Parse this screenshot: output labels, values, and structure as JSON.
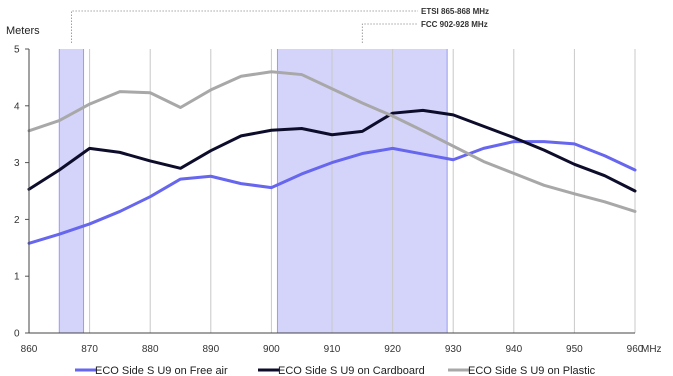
{
  "chart_data": {
    "type": "line",
    "ylabel": "Meters",
    "xunit": "MHz",
    "xlim": [
      860,
      960
    ],
    "ylim": [
      0,
      5
    ],
    "grid": "vertical",
    "legend_position": "bottom",
    "x_ticks": [
      860,
      870,
      880,
      890,
      900,
      910,
      920,
      930,
      940,
      950,
      960
    ],
    "y_ticks": [
      0,
      1,
      2,
      3,
      4,
      5
    ],
    "bands": [
      {
        "label": "ETSI 865-868 MHz",
        "x": [
          865,
          869
        ]
      },
      {
        "label": "FCC 902-928 MHz",
        "x": [
          901,
          929
        ]
      }
    ],
    "x": [
      860,
      865,
      870,
      875,
      880,
      885,
      890,
      895,
      900,
      905,
      910,
      915,
      920,
      925,
      930,
      935,
      940,
      945,
      950,
      955,
      960
    ],
    "series": [
      {
        "name": "ECO Side S U9 on Free air",
        "color": "#6666ee",
        "values": [
          1.58,
          1.74,
          1.92,
          2.14,
          2.4,
          2.71,
          2.76,
          2.63,
          2.56,
          2.8,
          3.0,
          3.16,
          3.25,
          3.15,
          3.05,
          3.25,
          3.37,
          3.37,
          3.33,
          3.12,
          2.87
        ]
      },
      {
        "name": "ECO Side S U9 on Cardboard",
        "color": "#0d0d2b",
        "values": [
          2.53,
          2.87,
          3.25,
          3.18,
          3.03,
          2.9,
          3.21,
          3.47,
          3.57,
          3.6,
          3.49,
          3.55,
          3.87,
          3.92,
          3.84,
          3.64,
          3.44,
          3.22,
          2.97,
          2.77,
          2.5
        ]
      },
      {
        "name": "ECO Side S U9 on Plastic",
        "color": "#a8a8a8",
        "values": [
          3.56,
          3.74,
          4.03,
          4.25,
          4.23,
          3.97,
          4.28,
          4.52,
          4.6,
          4.55,
          4.3,
          4.05,
          3.82,
          3.56,
          3.29,
          3.02,
          2.81,
          2.6,
          2.45,
          2.31,
          2.14
        ]
      }
    ]
  }
}
